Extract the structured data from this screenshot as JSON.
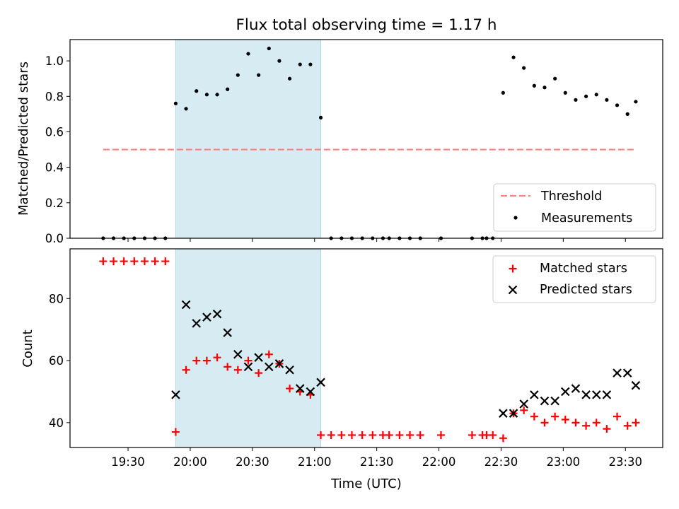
{
  "title": "Flux total observing time = 1.17 h",
  "xlabel": "Time (UTC)",
  "colors": {
    "threshold": "#ff8080",
    "measurements": "#000000",
    "matched": "#ff0000",
    "predicted": "#000000",
    "shade": "#add8e6"
  },
  "chart_data": [
    {
      "type": "scatter",
      "panel": "top",
      "ylabel": "Matched/Predicted stars",
      "ylim": [
        0,
        1.12
      ],
      "yticks": [
        0.0,
        0.2,
        0.4,
        0.6,
        0.8,
        1.0
      ],
      "ytick_labels": [
        "0.0",
        "0.2",
        "0.4",
        "0.6",
        "0.8",
        "1.0"
      ],
      "legend": {
        "position": "lower right",
        "entries": [
          "Threshold",
          "Measurements"
        ]
      },
      "threshold": {
        "name": "Threshold",
        "value": 0.5,
        "x_range": [
          "19:18",
          "23:35"
        ]
      },
      "shaded_interval": [
        "19:53",
        "21:03"
      ],
      "series": [
        {
          "name": "Measurements",
          "points": [
            [
              "19:18",
              0
            ],
            [
              "19:23",
              0
            ],
            [
              "19:28",
              0
            ],
            [
              "19:33",
              0
            ],
            [
              "19:38",
              0
            ],
            [
              "19:43",
              0
            ],
            [
              "19:48",
              0
            ],
            [
              "19:53",
              0.76
            ],
            [
              "19:58",
              0.73
            ],
            [
              "20:03",
              0.83
            ],
            [
              "20:08",
              0.81
            ],
            [
              "20:13",
              0.81
            ],
            [
              "20:18",
              0.84
            ],
            [
              "20:23",
              0.92
            ],
            [
              "20:28",
              1.04
            ],
            [
              "20:33",
              0.92
            ],
            [
              "20:38",
              1.07
            ],
            [
              "20:43",
              1.0
            ],
            [
              "20:48",
              0.9
            ],
            [
              "20:53",
              0.98
            ],
            [
              "20:58",
              0.98
            ],
            [
              "21:03",
              0.68
            ],
            [
              "21:08",
              0
            ],
            [
              "21:13",
              0
            ],
            [
              "21:18",
              0
            ],
            [
              "21:23",
              0
            ],
            [
              "21:28",
              0
            ],
            [
              "21:33",
              0
            ],
            [
              "21:36",
              0
            ],
            [
              "21:41",
              0
            ],
            [
              "21:46",
              0
            ],
            [
              "21:51",
              0
            ],
            [
              "22:01",
              0
            ],
            [
              "22:16",
              0
            ],
            [
              "22:21",
              0
            ],
            [
              "22:23",
              0
            ],
            [
              "22:26",
              0
            ],
            [
              "22:31",
              0.82
            ],
            [
              "22:36",
              1.02
            ],
            [
              "22:41",
              0.96
            ],
            [
              "22:46",
              0.86
            ],
            [
              "22:51",
              0.85
            ],
            [
              "22:56",
              0.9
            ],
            [
              "23:01",
              0.82
            ],
            [
              "23:06",
              0.78
            ],
            [
              "23:11",
              0.8
            ],
            [
              "23:16",
              0.81
            ],
            [
              "23:21",
              0.78
            ],
            [
              "23:26",
              0.75
            ],
            [
              "23:31",
              0.7
            ],
            [
              "23:35",
              0.77
            ]
          ]
        }
      ]
    },
    {
      "type": "scatter",
      "panel": "bottom",
      "ylabel": "Count",
      "ylim": [
        32,
        96
      ],
      "yticks": [
        40,
        60,
        80
      ],
      "ytick_labels": [
        "40",
        "60",
        "80"
      ],
      "xlim": [
        "19:02",
        "23:48"
      ],
      "xticks": [
        "19:30",
        "20:00",
        "20:30",
        "21:00",
        "21:30",
        "22:00",
        "22:30",
        "23:00",
        "23:30"
      ],
      "legend": {
        "position": "upper right",
        "entries": [
          "Matched stars",
          "Predicted stars"
        ]
      },
      "shaded_interval": [
        "19:53",
        "21:03"
      ],
      "series": [
        {
          "name": "Matched stars",
          "marker": "plus",
          "points": [
            [
              "19:18",
              92
            ],
            [
              "19:23",
              92
            ],
            [
              "19:28",
              92
            ],
            [
              "19:33",
              92
            ],
            [
              "19:38",
              92
            ],
            [
              "19:43",
              92
            ],
            [
              "19:48",
              92
            ],
            [
              "19:53",
              37
            ],
            [
              "19:58",
              57
            ],
            [
              "20:03",
              60
            ],
            [
              "20:08",
              60
            ],
            [
              "20:13",
              61
            ],
            [
              "20:18",
              58
            ],
            [
              "20:23",
              57
            ],
            [
              "20:28",
              60
            ],
            [
              "20:33",
              56
            ],
            [
              "20:38",
              62
            ],
            [
              "20:43",
              59
            ],
            [
              "20:48",
              51
            ],
            [
              "20:53",
              50
            ],
            [
              "20:58",
              49
            ],
            [
              "21:03",
              36
            ],
            [
              "21:08",
              36
            ],
            [
              "21:13",
              36
            ],
            [
              "21:18",
              36
            ],
            [
              "21:23",
              36
            ],
            [
              "21:28",
              36
            ],
            [
              "21:33",
              36
            ],
            [
              "21:36",
              36
            ],
            [
              "21:41",
              36
            ],
            [
              "21:46",
              36
            ],
            [
              "21:51",
              36
            ],
            [
              "22:01",
              36
            ],
            [
              "22:16",
              36
            ],
            [
              "22:21",
              36
            ],
            [
              "22:23",
              36
            ],
            [
              "22:26",
              36
            ],
            [
              "22:31",
              35
            ],
            [
              "22:36",
              43
            ],
            [
              "22:41",
              44
            ],
            [
              "22:46",
              42
            ],
            [
              "22:51",
              40
            ],
            [
              "22:56",
              42
            ],
            [
              "23:01",
              41
            ],
            [
              "23:06",
              40
            ],
            [
              "23:11",
              39
            ],
            [
              "23:16",
              40
            ],
            [
              "23:21",
              38
            ],
            [
              "23:26",
              42
            ],
            [
              "23:31",
              39
            ],
            [
              "23:35",
              40
            ]
          ]
        },
        {
          "name": "Predicted stars",
          "marker": "x",
          "points": [
            [
              "19:53",
              49
            ],
            [
              "19:58",
              78
            ],
            [
              "20:03",
              72
            ],
            [
              "20:08",
              74
            ],
            [
              "20:13",
              75
            ],
            [
              "20:18",
              69
            ],
            [
              "20:23",
              62
            ],
            [
              "20:28",
              58
            ],
            [
              "20:33",
              61
            ],
            [
              "20:38",
              58
            ],
            [
              "20:43",
              59
            ],
            [
              "20:48",
              57
            ],
            [
              "20:53",
              51
            ],
            [
              "20:58",
              50
            ],
            [
              "21:03",
              53
            ],
            [
              "22:31",
              43
            ],
            [
              "22:36",
              43
            ],
            [
              "22:41",
              46
            ],
            [
              "22:46",
              49
            ],
            [
              "22:51",
              47
            ],
            [
              "22:56",
              47
            ],
            [
              "23:01",
              50
            ],
            [
              "23:06",
              51
            ],
            [
              "23:11",
              49
            ],
            [
              "23:16",
              49
            ],
            [
              "23:21",
              49
            ],
            [
              "23:26",
              56
            ],
            [
              "23:31",
              56
            ],
            [
              "23:35",
              52
            ]
          ]
        }
      ]
    }
  ]
}
